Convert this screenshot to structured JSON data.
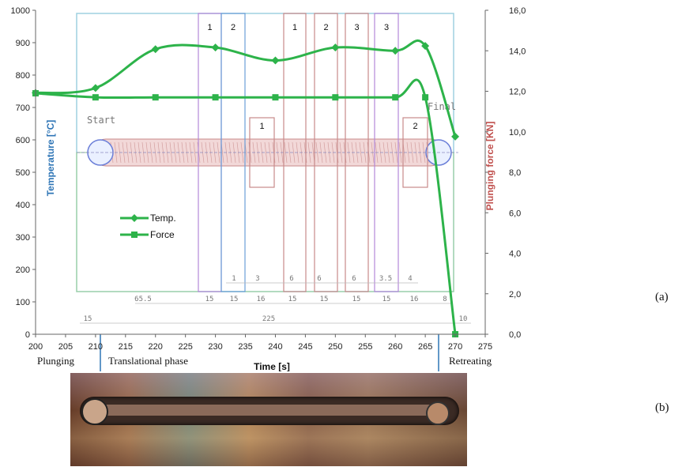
{
  "panel_labels": {
    "a": "(a)",
    "b": "(b)"
  },
  "chart_data": {
    "type": "line",
    "title": "",
    "xlabel": "Time [s]",
    "ylabel_left": "Temperature [°C]",
    "ylabel_right": "Plunging force [KN]",
    "xlim": [
      200,
      275
    ],
    "ylim_left": [
      0,
      1000
    ],
    "ylim_right": [
      0,
      16
    ],
    "x_ticks": [
      "200",
      "205",
      "210",
      "215",
      "220",
      "225",
      "230",
      "235",
      "240",
      "245",
      "250",
      "255",
      "260",
      "265",
      "270",
      "275"
    ],
    "y_left_ticks": [
      "0",
      "100",
      "200",
      "300",
      "400",
      "500",
      "600",
      "700",
      "800",
      "900",
      "1000"
    ],
    "y_right_ticks": [
      "0,0",
      "2,0",
      "4,0",
      "6,0",
      "8,0",
      "10,0",
      "12,0",
      "14,0",
      "16,0"
    ],
    "series": [
      {
        "name": "Temp.",
        "axis": "left",
        "marker": "diamond",
        "color": "#2db34a",
        "x": [
          200,
          210,
          220,
          230,
          240,
          250,
          260,
          265,
          270
        ],
        "y": [
          745,
          760,
          880,
          885,
          845,
          885,
          875,
          890,
          610
        ]
      },
      {
        "name": "Force",
        "axis": "right",
        "marker": "square",
        "color": "#2db34a",
        "x": [
          200,
          210,
          220,
          230,
          240,
          250,
          260,
          265,
          270
        ],
        "y": [
          11.9,
          11.7,
          11.7,
          11.7,
          11.7,
          11.7,
          11.7,
          11.7,
          0.0
        ]
      }
    ],
    "legend": {
      "placement": "center-left"
    },
    "phases": [
      "Plunging",
      "Translational phase",
      "Retreating"
    ],
    "schematic": {
      "start_label": "Start",
      "final_label": "Final",
      "top_segments": [
        "1",
        "2",
        "1",
        "2",
        "3",
        "3"
      ],
      "mid_segments": [
        "1",
        "2"
      ],
      "dim_row1": [
        "1",
        "3",
        "6",
        "6",
        "6",
        "3.5",
        "4"
      ],
      "dim_row2": [
        "65.5",
        "15",
        "15",
        "16",
        "15",
        "15",
        "15",
        "15",
        "16",
        "8"
      ],
      "dim_row3": [
        "15",
        "225",
        "10"
      ]
    }
  }
}
